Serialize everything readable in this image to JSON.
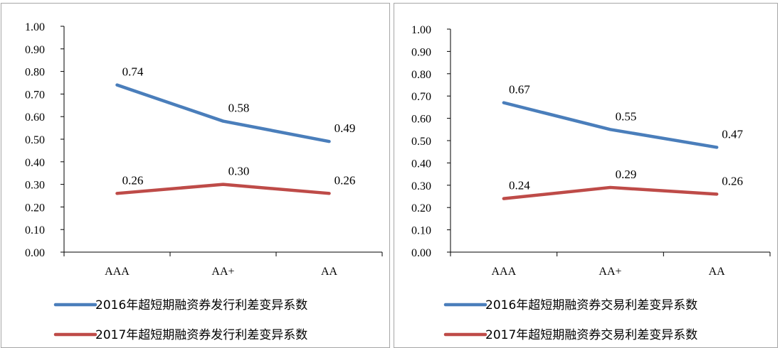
{
  "chart_data": [
    {
      "type": "line",
      "categories": [
        "AAA",
        "AA+",
        "AA"
      ],
      "ylim": [
        0,
        1.0
      ],
      "yticks": [
        "0.00",
        "0.10",
        "0.20",
        "0.30",
        "0.40",
        "0.50",
        "0.60",
        "0.70",
        "0.80",
        "0.90",
        "1.00"
      ],
      "grid": false,
      "legend": "bottom",
      "series": [
        {
          "name": "2016年超短期融资券发行利差变异系数",
          "values": [
            0.74,
            0.58,
            0.49
          ],
          "labels": [
            "0.74",
            "0.58",
            "0.49"
          ],
          "color": "#4a7ebb"
        },
        {
          "name": "2017年超短期融资券发行利差变异系数",
          "values": [
            0.26,
            0.3,
            0.26
          ],
          "labels": [
            "0.26",
            "0.30",
            "0.26"
          ],
          "color": "#be4b48"
        }
      ]
    },
    {
      "type": "line",
      "categories": [
        "AAA",
        "AA+",
        "AA"
      ],
      "ylim": [
        0,
        1.0
      ],
      "yticks": [
        "0.00",
        "0.10",
        "0.20",
        "0.30",
        "0.40",
        "0.50",
        "0.60",
        "0.70",
        "0.80",
        "0.90",
        "1.00"
      ],
      "grid": false,
      "legend": "bottom",
      "series": [
        {
          "name": "2016年超短期融资券交易利差变异系数",
          "values": [
            0.67,
            0.55,
            0.47
          ],
          "labels": [
            "0.67",
            "0.55",
            "0.47"
          ],
          "color": "#4a7ebb"
        },
        {
          "name": "2017年超短期融资券交易利差变异系数",
          "values": [
            0.24,
            0.29,
            0.26
          ],
          "labels": [
            "0.24",
            "0.29",
            "0.26"
          ],
          "color": "#be4b48"
        }
      ]
    }
  ]
}
